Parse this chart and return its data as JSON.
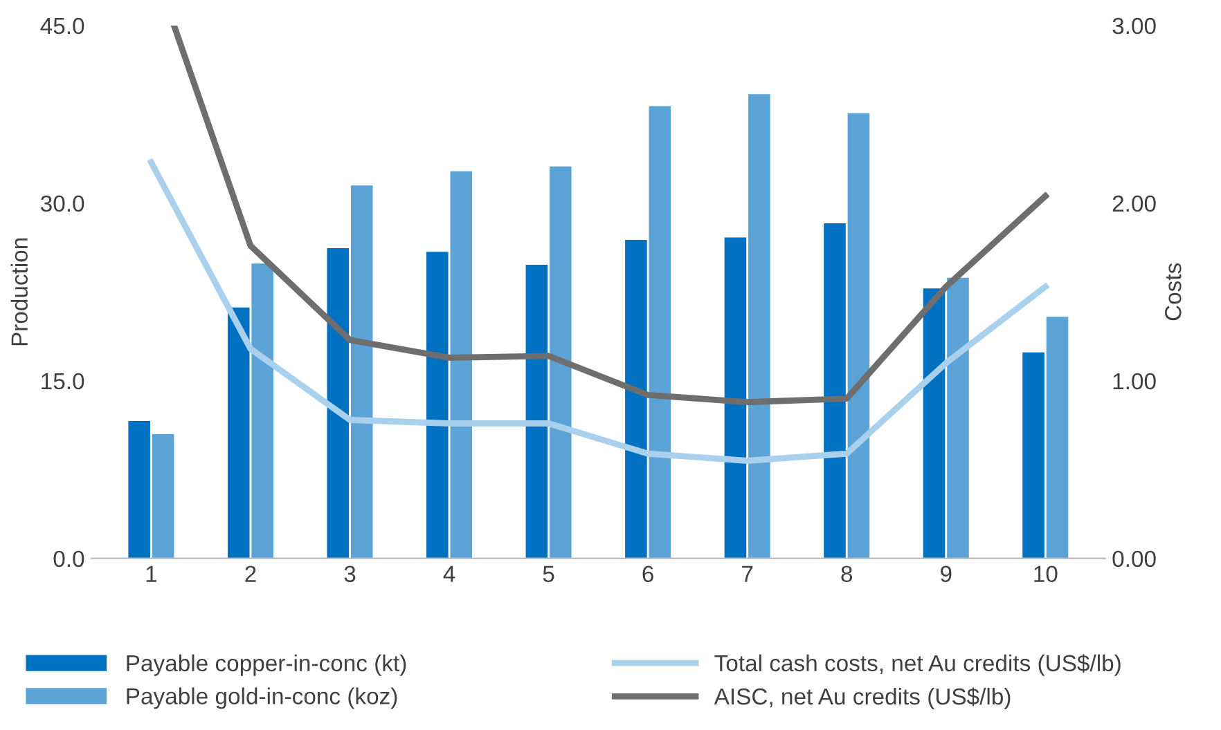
{
  "chart_data": {
    "type": "bar",
    "x": [
      1,
      2,
      3,
      4,
      5,
      6,
      7,
      8,
      9,
      10
    ],
    "xlim": [
      0.4,
      10.6
    ],
    "xticks": [
      1,
      2,
      3,
      4,
      5,
      6,
      7,
      8,
      9,
      10
    ],
    "ylabel": "Production",
    "y2label": "Costs",
    "ylim": [
      0,
      45
    ],
    "yticks": [
      {
        "value": 0,
        "label": "0.0"
      },
      {
        "value": 15,
        "label": "15.0"
      },
      {
        "value": 30,
        "label": "30.0"
      },
      {
        "value": 45,
        "label": "45.0"
      }
    ],
    "y2lim": [
      0,
      3
    ],
    "y2ticks": [
      {
        "value": 0,
        "label": "0.00"
      },
      {
        "value": 1,
        "label": "1.00"
      },
      {
        "value": 2,
        "label": "2.00"
      },
      {
        "value": 3,
        "label": "3.00"
      }
    ],
    "grid": false,
    "legend": "bottom",
    "series": [
      {
        "name": "Payable copper-in-conc (kt)",
        "color": "#0070c0",
        "values": [
          11.6,
          21.2,
          26.2,
          25.9,
          24.8,
          26.9,
          27.1,
          28.3,
          22.8,
          17.4
        ]
      },
      {
        "name": "Payable gold-in-conc (koz)",
        "color": "#5ba3d6",
        "values": [
          10.5,
          24.9,
          31.5,
          32.7,
          33.1,
          38.2,
          39.2,
          37.6,
          23.7,
          20.4
        ]
      },
      {
        "name": "Total cash costs, net Au credits (US$/lb)",
        "type": "line",
        "axis": "y2",
        "color": "#a9d1ee",
        "values": [
          2.23,
          1.18,
          0.78,
          0.76,
          0.76,
          0.59,
          0.55,
          0.59,
          1.1,
          1.53
        ]
      },
      {
        "name": "AISC, net Au credits (US$/lb)",
        "type": "line",
        "axis": "y2",
        "color": "#6e6e6e",
        "x": [
          1.23,
          2,
          3,
          4,
          5,
          6,
          7,
          8,
          9,
          10
        ],
        "values": [
          3.0,
          1.76,
          1.23,
          1.13,
          1.14,
          0.92,
          0.88,
          0.9,
          1.53,
          2.04
        ]
      }
    ]
  }
}
